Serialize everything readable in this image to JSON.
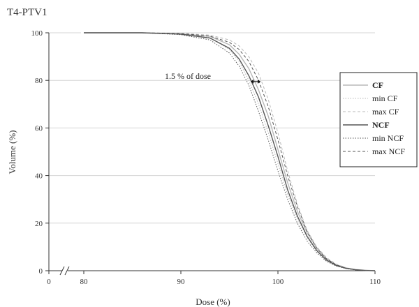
{
  "chart_data": {
    "type": "line",
    "title": "T4-PTV1",
    "xlabel": "Dose (%)",
    "ylabel": "Volume (%)",
    "xlim": [
      0,
      110
    ],
    "ylim": [
      0,
      100
    ],
    "x_break": [
      0,
      80
    ],
    "x_ticks": [
      "0",
      "80",
      "90",
      "100",
      "110"
    ],
    "y_ticks": [
      "0",
      "20",
      "40",
      "60",
      "80",
      "100"
    ],
    "grid": "horizontal",
    "legend_position": "right",
    "annotation": {
      "text": "1.5 % of dose",
      "arrow_x": [
        97.2,
        98.2
      ],
      "y": 79.5
    },
    "series": [
      {
        "name": "CF",
        "color": "#b8b8b8",
        "style": "solid",
        "bold": true,
        "x": [
          80,
          86,
          90,
          93,
          95,
          96,
          97,
          98,
          99,
          100,
          101,
          102,
          103,
          104,
          105,
          106,
          107,
          108,
          109,
          110
        ],
        "y": [
          100,
          100,
          99.6,
          98.5,
          95,
          91,
          85,
          76,
          65,
          51,
          37,
          25,
          16,
          9.5,
          5,
          2.5,
          1.2,
          0.5,
          0.2,
          0
        ]
      },
      {
        "name": "min CF",
        "color": "#b8b8b8",
        "style": "dotted",
        "bold": false,
        "x": [
          80,
          86,
          90,
          93,
          95,
          96,
          97,
          98,
          99,
          100,
          101,
          102,
          103,
          104,
          105,
          106,
          107,
          108,
          109,
          110
        ],
        "y": [
          100,
          100,
          99.5,
          98,
          93,
          88,
          80,
          70,
          58,
          45,
          32,
          22,
          14,
          8,
          4,
          2,
          1,
          0.4,
          0.1,
          0
        ]
      },
      {
        "name": "max CF",
        "color": "#b8b8b8",
        "style": "dashed",
        "bold": false,
        "x": [
          80,
          86,
          90,
          93,
          95,
          96,
          97,
          98,
          99,
          100,
          101,
          102,
          103,
          104,
          105,
          106,
          107,
          108,
          109,
          110
        ],
        "y": [
          100,
          100,
          99.8,
          99,
          97,
          94.5,
          90,
          83,
          72,
          58,
          42,
          28,
          17,
          10,
          5.5,
          2.8,
          1.3,
          0.5,
          0.2,
          0
        ]
      },
      {
        "name": "NCF",
        "color": "#555555",
        "style": "solid",
        "bold": true,
        "x": [
          80,
          86,
          90,
          93,
          95,
          96,
          97,
          98,
          99,
          100,
          101,
          102,
          103,
          104,
          105,
          106,
          107,
          108,
          109,
          110
        ],
        "y": [
          100,
          100,
          99.4,
          97.8,
          93.5,
          89,
          82,
          73,
          61,
          48,
          34,
          23,
          14.5,
          8.5,
          4.5,
          2.2,
          1,
          0.4,
          0.1,
          0
        ]
      },
      {
        "name": "min NCF",
        "color": "#555555",
        "style": "dotted",
        "bold": false,
        "x": [
          80,
          86,
          90,
          93,
          95,
          96,
          97,
          98,
          99,
          100,
          101,
          102,
          103,
          104,
          105,
          106,
          107,
          108,
          109,
          110
        ],
        "y": [
          100,
          100,
          99.2,
          97,
          91.5,
          86,
          78,
          67,
          55,
          42,
          30,
          20,
          12.5,
          7.5,
          4,
          2,
          0.9,
          0.3,
          0.1,
          0
        ]
      },
      {
        "name": "max NCF",
        "color": "#555555",
        "style": "dashed",
        "bold": false,
        "x": [
          80,
          86,
          90,
          93,
          95,
          96,
          97,
          98,
          99,
          100,
          101,
          102,
          103,
          104,
          105,
          106,
          107,
          108,
          109,
          110
        ],
        "y": [
          100,
          100,
          99.7,
          98.6,
          96,
          93,
          88,
          80,
          69,
          55,
          40,
          27,
          16.5,
          9.5,
          5,
          2.5,
          1.1,
          0.4,
          0.1,
          0
        ]
      }
    ]
  }
}
